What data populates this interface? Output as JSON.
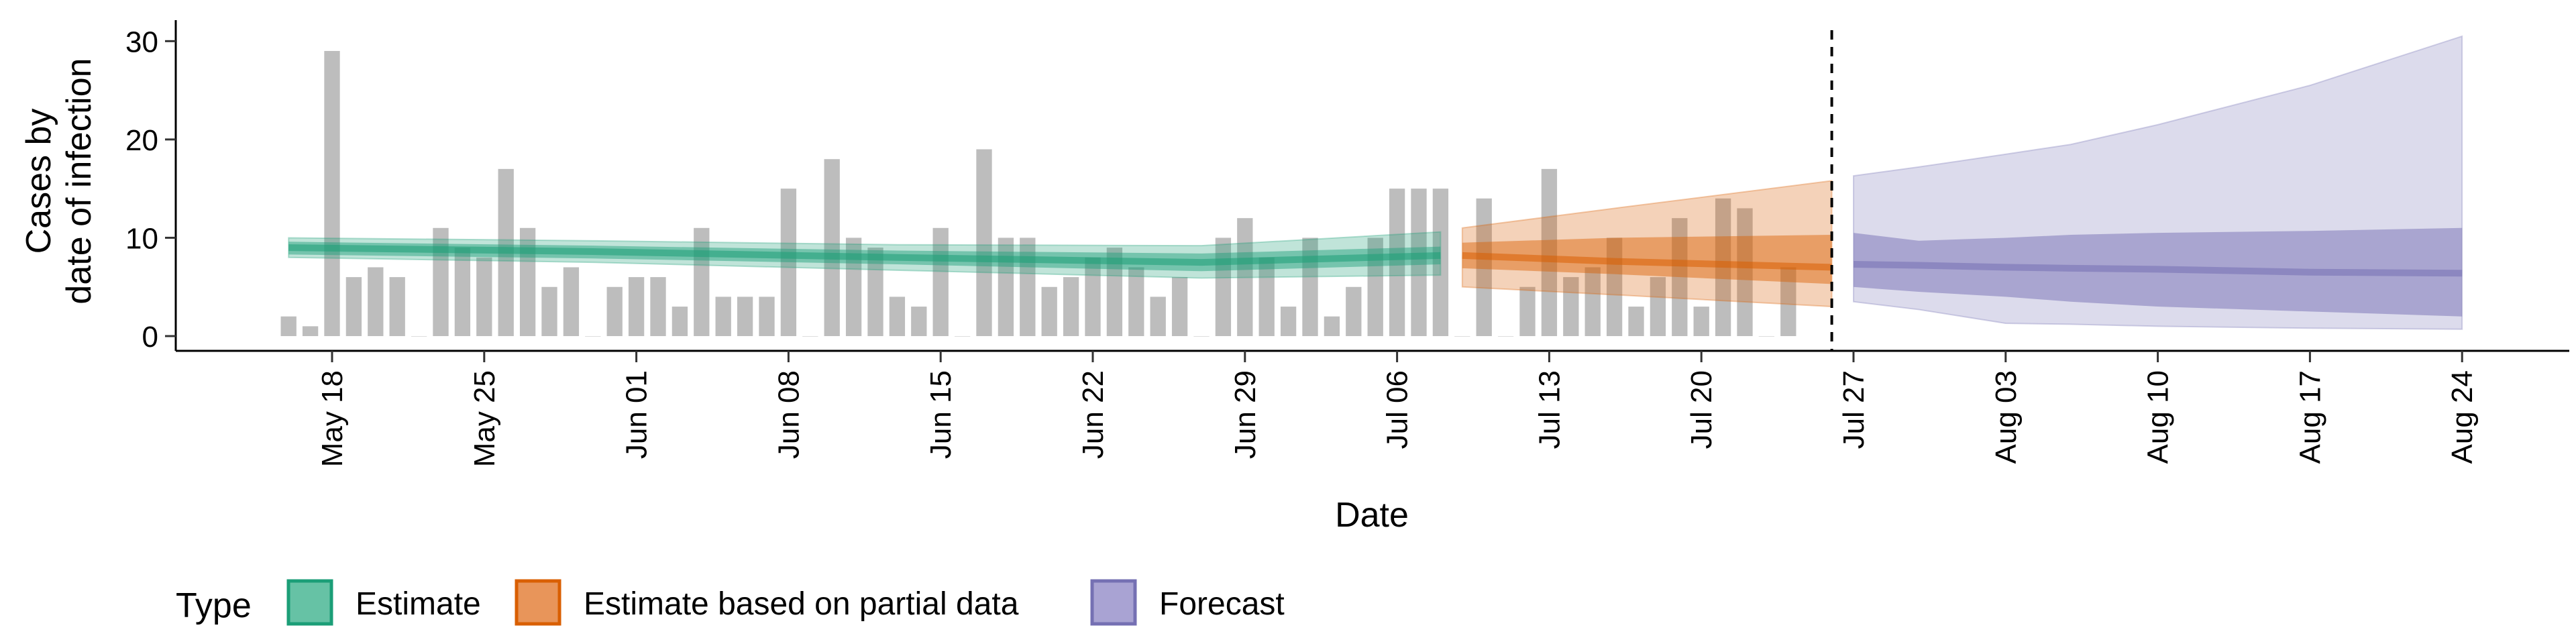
{
  "chart_data": {
    "type": "bar",
    "xlabel": "Date",
    "ylabel_lines": [
      "Cases by",
      "date of infection"
    ],
    "yticks": [
      0,
      10,
      20,
      30
    ],
    "ylim": [
      -1.5,
      32
    ],
    "xticks": [
      "May 18",
      "May 25",
      "Jun 01",
      "Jun 08",
      "Jun 15",
      "Jun 22",
      "Jun 29",
      "Jul 06",
      "Jul 13",
      "Jul 20",
      "Jul 27",
      "Aug 03",
      "Aug 10",
      "Aug 17",
      "Aug 24"
    ],
    "forecast_start": "Jul 26",
    "legend": {
      "title": "Type",
      "position": "bottom",
      "items": [
        {
          "label": "Estimate",
          "color": "#66c2a5",
          "border": "#1b9e77"
        },
        {
          "label": "Estimate based on partial data",
          "color": "#e8955a",
          "border": "#d95f02"
        },
        {
          "label": "Forecast",
          "color": "#a9a3d3",
          "border": "#7570b3"
        }
      ]
    },
    "colors": {
      "bars": "#bdbdbd",
      "estimate": "#1b9e77",
      "partial": "#d95f02",
      "forecast": "#7570b3"
    },
    "reported_cases": {
      "start_date": "May 16",
      "values": [
        2,
        1,
        29,
        6,
        7,
        6,
        0,
        11,
        9,
        8,
        17,
        11,
        5,
        7,
        0,
        5,
        6,
        6,
        3,
        11,
        4,
        4,
        4,
        15,
        0,
        18,
        10,
        9,
        4,
        3,
        11,
        0,
        19,
        10,
        10,
        5,
        6,
        8,
        9,
        7,
        4,
        6,
        0,
        10,
        12,
        8,
        3,
        10,
        2,
        5,
        10,
        15,
        15,
        15,
        0,
        14,
        0,
        5,
        17,
        6,
        7,
        10,
        3,
        6,
        12,
        3,
        14,
        13,
        0,
        7
      ]
    },
    "series": [
      {
        "name": "Estimate",
        "dates": [
          "May 16",
          "May 30",
          "Jun 13",
          "Jun 27",
          "Jul 08"
        ],
        "median": [
          9.0,
          8.6,
          8.0,
          7.5,
          8.2
        ],
        "inner": [
          [
            8.3,
            9.6
          ],
          [
            7.9,
            9.2
          ],
          [
            7.3,
            8.7
          ],
          [
            6.6,
            8.4
          ],
          [
            7.3,
            9.1
          ]
        ],
        "outer": [
          [
            8.0,
            10.0
          ],
          [
            7.5,
            9.7
          ],
          [
            6.7,
            9.3
          ],
          [
            5.9,
            9.2
          ],
          [
            6.2,
            10.6
          ]
        ]
      },
      {
        "name": "Estimate based on partial data",
        "dates": [
          "Jul 09",
          "Jul 16",
          "Jul 26"
        ],
        "median": [
          8.2,
          7.6,
          7.0
        ],
        "inner": [
          [
            6.9,
            9.5
          ],
          [
            6.3,
            10.0
          ],
          [
            5.3,
            10.3
          ]
        ],
        "outer": [
          [
            5.0,
            11.0
          ],
          [
            4.2,
            13.0
          ],
          [
            3.0,
            15.8
          ]
        ]
      },
      {
        "name": "Forecast",
        "dates": [
          "Jul 27",
          "Jul 30",
          "Aug 03",
          "Aug 06",
          "Aug 10",
          "Aug 17",
          "Aug 24"
        ],
        "median": [
          7.3,
          7.2,
          7.0,
          6.9,
          6.8,
          6.5,
          6.4
        ],
        "inner": [
          [
            5.0,
            10.5
          ],
          [
            4.5,
            9.7
          ],
          [
            4.0,
            10.0
          ],
          [
            3.5,
            10.3
          ],
          [
            3.0,
            10.5
          ],
          [
            2.5,
            10.7
          ],
          [
            2.0,
            11.0
          ]
        ],
        "outer": [
          [
            3.5,
            16.3
          ],
          [
            2.7,
            17.2
          ],
          [
            1.3,
            18.5
          ],
          [
            1.2,
            19.5
          ],
          [
            1.0,
            21.5
          ],
          [
            0.8,
            25.5
          ],
          [
            0.7,
            30.5
          ]
        ]
      }
    ]
  }
}
